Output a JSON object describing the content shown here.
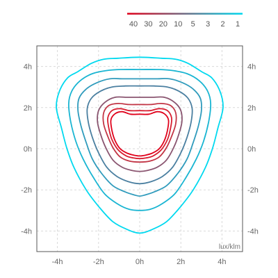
{
  "chart_data": {
    "type": "contour",
    "unit_label": "lux/klm",
    "legend": {
      "levels": [
        "40",
        "30",
        "20",
        "10",
        "5",
        "3",
        "2",
        "1"
      ],
      "gradient_from": "#e0001a",
      "gradient_to": "#00d9ef"
    },
    "x_axis": {
      "min": -5,
      "max": 5,
      "ticks": [
        -4,
        -2,
        0,
        2,
        4
      ],
      "tick_labels": [
        "-4h",
        "-2h",
        "0h",
        "2h",
        "4h"
      ]
    },
    "y_axis": {
      "min": -5,
      "max": 5,
      "ticks": [
        -4,
        -2,
        0,
        2,
        4
      ],
      "tick_labels": [
        "-4h",
        "-2h",
        "0h",
        "2h",
        "4h"
      ]
    },
    "grid": true,
    "contours": [
      {
        "level": "1",
        "color": "#00d9ef",
        "pts": [
          [
            0,
            4.45
          ],
          [
            1.05,
            4.4
          ],
          [
            1.75,
            4.35
          ],
          [
            2.35,
            4.15
          ],
          [
            3.0,
            3.75
          ],
          [
            3.5,
            3.45
          ],
          [
            3.9,
            2.8
          ],
          [
            4.05,
            2.0
          ],
          [
            3.8,
            1.0
          ],
          [
            3.55,
            0.05
          ],
          [
            3.2,
            -0.9
          ],
          [
            2.6,
            -2.0
          ],
          [
            2.0,
            -2.8
          ],
          [
            1.3,
            -3.55
          ],
          [
            0.55,
            -3.95
          ],
          [
            0,
            -4.1
          ],
          [
            -0.55,
            -3.95
          ],
          [
            -1.3,
            -3.55
          ],
          [
            -2.0,
            -2.8
          ],
          [
            -2.6,
            -2.0
          ],
          [
            -3.2,
            -0.9
          ],
          [
            -3.55,
            0.05
          ],
          [
            -3.8,
            1.0
          ],
          [
            -4.05,
            2.0
          ],
          [
            -3.9,
            2.8
          ],
          [
            -3.5,
            3.45
          ],
          [
            -3.0,
            3.75
          ],
          [
            -2.35,
            4.15
          ],
          [
            -1.75,
            4.35
          ],
          [
            -1.05,
            4.4
          ]
        ]
      },
      {
        "level": "2",
        "color": "#19b5d2",
        "pts": [
          [
            0,
            3.85
          ],
          [
            0.9,
            3.85
          ],
          [
            1.6,
            3.8
          ],
          [
            2.3,
            3.65
          ],
          [
            2.9,
            3.3
          ],
          [
            3.3,
            2.8
          ],
          [
            3.45,
            2.2
          ],
          [
            3.35,
            1.3
          ],
          [
            3.1,
            0.35
          ],
          [
            2.75,
            -0.5
          ],
          [
            2.25,
            -1.4
          ],
          [
            1.7,
            -2.2
          ],
          [
            1.05,
            -2.7
          ],
          [
            0.5,
            -2.95
          ],
          [
            0,
            -3.0
          ],
          [
            -0.5,
            -2.95
          ],
          [
            -1.05,
            -2.7
          ],
          [
            -1.7,
            -2.2
          ],
          [
            -2.25,
            -1.4
          ],
          [
            -2.75,
            -0.5
          ],
          [
            -3.1,
            0.35
          ],
          [
            -3.35,
            1.3
          ],
          [
            -3.45,
            2.2
          ],
          [
            -3.3,
            2.8
          ],
          [
            -2.9,
            3.3
          ],
          [
            -2.3,
            3.65
          ],
          [
            -1.6,
            3.8
          ],
          [
            -0.9,
            3.85
          ]
        ]
      },
      {
        "level": "3",
        "color": "#2f9bbc",
        "pts": [
          [
            0,
            3.4
          ],
          [
            0.8,
            3.4
          ],
          [
            1.45,
            3.4
          ],
          [
            2.1,
            3.2
          ],
          [
            2.6,
            2.9
          ],
          [
            2.95,
            2.45
          ],
          [
            3.0,
            1.85
          ],
          [
            2.85,
            1.1
          ],
          [
            2.6,
            0.3
          ],
          [
            2.3,
            -0.5
          ],
          [
            1.85,
            -1.2
          ],
          [
            1.3,
            -1.8
          ],
          [
            0.7,
            -2.1
          ],
          [
            0.25,
            -2.25
          ],
          [
            0,
            -2.3
          ],
          [
            -0.25,
            -2.25
          ],
          [
            -0.7,
            -2.1
          ],
          [
            -1.3,
            -1.8
          ],
          [
            -1.85,
            -1.2
          ],
          [
            -2.3,
            -0.5
          ],
          [
            -2.6,
            0.3
          ],
          [
            -2.85,
            1.1
          ],
          [
            -3.0,
            1.85
          ],
          [
            -2.95,
            2.45
          ],
          [
            -2.6,
            2.9
          ],
          [
            -2.1,
            3.2
          ],
          [
            -1.45,
            3.4
          ],
          [
            -0.8,
            3.4
          ]
        ]
      },
      {
        "level": "5",
        "color": "#4a7fa0",
        "pts": [
          [
            0,
            3.05
          ],
          [
            0.7,
            3.05
          ],
          [
            1.35,
            3.0
          ],
          [
            1.9,
            2.8
          ],
          [
            2.35,
            2.45
          ],
          [
            2.55,
            1.95
          ],
          [
            2.5,
            1.3
          ],
          [
            2.3,
            0.55
          ],
          [
            2.0,
            -0.2
          ],
          [
            1.6,
            -0.9
          ],
          [
            1.1,
            -1.35
          ],
          [
            0.55,
            -1.6
          ],
          [
            0,
            -1.7
          ],
          [
            -0.55,
            -1.6
          ],
          [
            -1.1,
            -1.35
          ],
          [
            -1.6,
            -0.9
          ],
          [
            -2.0,
            -0.2
          ],
          [
            -2.3,
            0.55
          ],
          [
            -2.5,
            1.3
          ],
          [
            -2.55,
            1.95
          ],
          [
            -2.35,
            2.45
          ],
          [
            -1.9,
            2.8
          ],
          [
            -1.35,
            3.0
          ],
          [
            -0.7,
            3.05
          ]
        ]
      },
      {
        "level": "10",
        "color": "#8a5570",
        "pts": [
          [
            0,
            2.5
          ],
          [
            0.6,
            2.5
          ],
          [
            1.2,
            2.5
          ],
          [
            1.7,
            2.25
          ],
          [
            2.0,
            1.85
          ],
          [
            2.05,
            1.3
          ],
          [
            1.9,
            0.7
          ],
          [
            1.65,
            0.05
          ],
          [
            1.3,
            -0.55
          ],
          [
            0.85,
            -0.9
          ],
          [
            0.4,
            -1.05
          ],
          [
            0,
            -1.1
          ],
          [
            -0.4,
            -1.05
          ],
          [
            -0.85,
            -0.9
          ],
          [
            -1.3,
            -0.55
          ],
          [
            -1.65,
            0.05
          ],
          [
            -1.9,
            0.7
          ],
          [
            -2.05,
            1.3
          ],
          [
            -2.0,
            1.85
          ],
          [
            -1.7,
            2.25
          ],
          [
            -1.2,
            2.5
          ],
          [
            -0.6,
            2.5
          ]
        ]
      },
      {
        "level": "20",
        "color": "#c23545",
        "pts": [
          [
            0,
            2.15
          ],
          [
            0.55,
            2.15
          ],
          [
            1.05,
            2.2
          ],
          [
            1.5,
            2.1
          ],
          [
            1.75,
            1.75
          ],
          [
            1.75,
            1.2
          ],
          [
            1.55,
            0.6
          ],
          [
            1.3,
            0.05
          ],
          [
            0.95,
            -0.4
          ],
          [
            0.5,
            -0.6
          ],
          [
            0,
            -0.65
          ],
          [
            -0.5,
            -0.6
          ],
          [
            -0.95,
            -0.4
          ],
          [
            -1.3,
            0.05
          ],
          [
            -1.55,
            0.6
          ],
          [
            -1.75,
            1.2
          ],
          [
            -1.75,
            1.75
          ],
          [
            -1.5,
            2.1
          ],
          [
            -1.05,
            2.2
          ],
          [
            -0.55,
            2.15
          ]
        ]
      },
      {
        "level": "30",
        "color": "#d81e30",
        "pts": [
          [
            0,
            1.85
          ],
          [
            0.5,
            1.85
          ],
          [
            0.95,
            1.95
          ],
          [
            1.35,
            1.85
          ],
          [
            1.55,
            1.5
          ],
          [
            1.5,
            1.0
          ],
          [
            1.35,
            0.45
          ],
          [
            1.05,
            -0.05
          ],
          [
            0.65,
            -0.35
          ],
          [
            0.3,
            -0.45
          ],
          [
            0,
            -0.48
          ],
          [
            -0.3,
            -0.45
          ],
          [
            -0.65,
            -0.35
          ],
          [
            -1.05,
            -0.05
          ],
          [
            -1.35,
            0.45
          ],
          [
            -1.5,
            1.0
          ],
          [
            -1.55,
            1.5
          ],
          [
            -1.35,
            1.85
          ],
          [
            -0.95,
            1.95
          ],
          [
            -0.5,
            1.85
          ]
        ]
      },
      {
        "level": "40",
        "color": "#e0001a",
        "pts": [
          [
            0,
            1.68
          ],
          [
            0.45,
            1.68
          ],
          [
            0.85,
            1.8
          ],
          [
            1.2,
            1.7
          ],
          [
            1.4,
            1.4
          ],
          [
            1.35,
            0.9
          ],
          [
            1.2,
            0.4
          ],
          [
            0.95,
            0.0
          ],
          [
            0.6,
            -0.22
          ],
          [
            0.25,
            -0.32
          ],
          [
            0,
            -0.35
          ],
          [
            -0.25,
            -0.32
          ],
          [
            -0.6,
            -0.22
          ],
          [
            -0.95,
            0.0
          ],
          [
            -1.2,
            0.4
          ],
          [
            -1.35,
            0.9
          ],
          [
            -1.4,
            1.4
          ],
          [
            -1.2,
            1.7
          ],
          [
            -0.85,
            1.8
          ],
          [
            -0.45,
            1.68
          ]
        ]
      }
    ]
  }
}
